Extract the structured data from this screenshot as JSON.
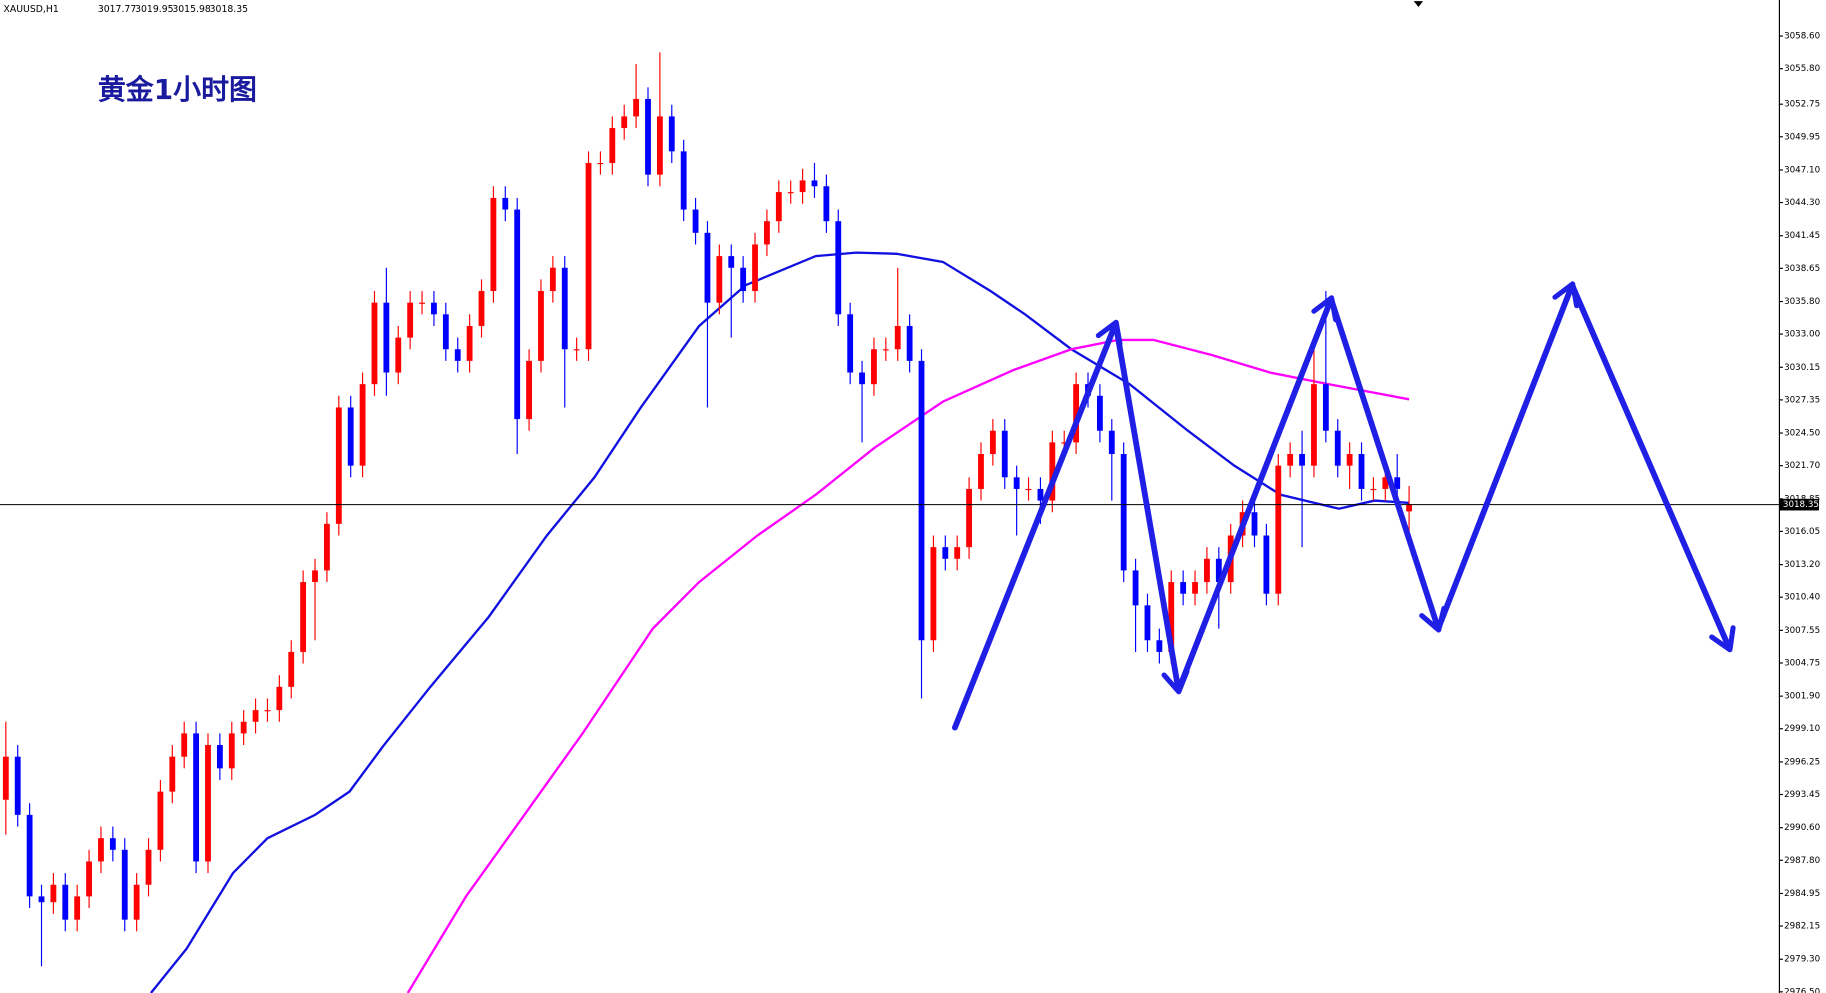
{
  "chart_data": {
    "type": "candlestick",
    "symbol": "XAUUSD,H1",
    "header_ohlc": [
      3017.77,
      3019.95,
      3015.98,
      3018.35
    ],
    "title": "黄金1小时图",
    "up_color": "#ff0000",
    "down_color": "#0000ff",
    "current_price": 3018.35,
    "ylim": [
      2976.4,
      3061.7
    ],
    "yticks": [
      {
        "value": 3058.6,
        "label": "3058.60"
      },
      {
        "value": 3055.8,
        "label": "3055.80"
      },
      {
        "value": 3052.75,
        "label": "3052.75"
      },
      {
        "value": 3049.95,
        "label": "3049.95"
      },
      {
        "value": 3047.1,
        "label": "3047.10"
      },
      {
        "value": 3044.3,
        "label": "3044.30"
      },
      {
        "value": 3041.45,
        "label": "3041.45"
      },
      {
        "value": 3038.65,
        "label": "3038.65"
      },
      {
        "value": 3035.8,
        "label": "3035.80"
      },
      {
        "value": 3033,
        "label": "3033.00"
      },
      {
        "value": 3030.15,
        "label": "3030.15"
      },
      {
        "value": 3027.35,
        "label": "3027.35"
      },
      {
        "value": 3024.5,
        "label": "3024.50"
      },
      {
        "value": 3021.7,
        "label": "3021.70"
      },
      {
        "value": 3018.85,
        "label": "3018.85"
      },
      {
        "value": 3016.05,
        "label": "3016.05"
      },
      {
        "value": 3013.2,
        "label": "3013.20"
      },
      {
        "value": 3010.4,
        "label": "3010.40"
      },
      {
        "value": 3007.55,
        "label": "3007.55"
      },
      {
        "value": 3004.75,
        "label": "3004.75"
      },
      {
        "value": 3001.9,
        "label": "3001.90"
      },
      {
        "value": 2999.1,
        "label": "2999.10"
      },
      {
        "value": 2996.25,
        "label": "2996.25"
      },
      {
        "value": 2993.45,
        "label": "2993.45"
      },
      {
        "value": 2990.6,
        "label": "2990.60"
      },
      {
        "value": 2987.8,
        "label": "2987.80"
      },
      {
        "value": 2984.95,
        "label": "2984.95"
      },
      {
        "value": 2982.15,
        "label": "2982.15"
      },
      {
        "value": 2979.3,
        "label": "2979.30"
      },
      {
        "value": 2976.5,
        "label": "2976.50"
      }
    ],
    "open": [
      2993.0,
      2996.7,
      2991.7,
      2984.7,
      2984.2,
      2985.7,
      2982.7,
      2984.7,
      2987.7,
      2989.7,
      2988.7,
      2982.7,
      2985.7,
      2988.7,
      2993.7,
      2996.7,
      2998.7,
      2987.7,
      2997.7,
      2995.7,
      2998.7,
      2999.7,
      3000.7,
      3000.7,
      3002.7,
      3005.7,
      3011.7,
      3012.7,
      3016.7,
      3026.7,
      3021.7,
      3028.7,
      3035.7,
      3029.7,
      3032.7,
      3035.7,
      3035.7,
      3034.7,
      3031.7,
      3030.7,
      3033.7,
      3036.7,
      3044.7,
      3043.7,
      3025.7,
      3030.7,
      3036.7,
      3038.7,
      3031.7,
      3031.7,
      3047.7,
      3047.7,
      3050.7,
      3051.7,
      3053.2,
      3046.7,
      3051.7,
      3048.7,
      3043.7,
      3041.7,
      3035.7,
      3039.7,
      3038.7,
      3036.7,
      3040.7,
      3042.7,
      3045.2,
      3045.2,
      3046.2,
      3045.7,
      3042.7,
      3034.7,
      3029.7,
      3028.7,
      3031.7,
      3031.7,
      3033.7,
      3030.7,
      3006.7,
      3014.7,
      3013.7,
      3014.7,
      3019.7,
      3022.7,
      3024.7,
      3020.7,
      3019.7,
      3019.7,
      3018.7,
      3023.7,
      3023.7,
      3028.7,
      3027.7,
      3024.7,
      3022.7,
      3012.7,
      3009.7,
      3006.7,
      3005.7,
      3011.7,
      3010.7,
      3011.7,
      3013.7,
      3011.7,
      3015.7,
      3017.7,
      3015.7,
      3010.7,
      3021.7,
      3022.7,
      3021.7,
      3028.7,
      3024.7,
      3021.7,
      3022.7,
      3019.7,
      3019.7,
      3020.7,
      3017.77
    ],
    "high": [
      2999.7,
      2997.7,
      2992.7,
      2985.7,
      2986.7,
      2986.7,
      2985.7,
      2988.7,
      2990.7,
      2990.7,
      2989.7,
      2986.7,
      2989.7,
      2994.7,
      2997.7,
      2999.7,
      2999.7,
      2998.7,
      2998.7,
      2999.7,
      3000.7,
      3001.7,
      3001.7,
      3003.7,
      3006.7,
      3012.7,
      3013.7,
      3017.7,
      3027.7,
      3027.7,
      3029.7,
      3036.7,
      3038.7,
      3033.7,
      3036.7,
      3036.7,
      3036.7,
      3035.7,
      3032.7,
      3034.7,
      3037.7,
      3045.7,
      3045.7,
      3044.7,
      3031.7,
      3037.7,
      3039.7,
      3039.7,
      3032.7,
      3048.7,
      3048.7,
      3051.7,
      3052.7,
      3056.2,
      3054.2,
      3057.2,
      3052.7,
      3049.7,
      3044.7,
      3042.7,
      3040.7,
      3040.7,
      3039.7,
      3041.7,
      3043.7,
      3046.2,
      3046.2,
      3047.2,
      3047.7,
      3046.7,
      3043.7,
      3035.7,
      3030.7,
      3032.7,
      3032.7,
      3038.7,
      3034.7,
      3031.7,
      3015.7,
      3015.7,
      3015.7,
      3020.7,
      3023.7,
      3025.7,
      3025.7,
      3021.7,
      3020.7,
      3020.7,
      3024.7,
      3024.7,
      3029.7,
      3029.7,
      3028.7,
      3025.7,
      3023.7,
      3013.7,
      3010.7,
      3007.7,
      3012.7,
      3012.7,
      3012.7,
      3014.7,
      3014.7,
      3016.7,
      3018.7,
      3018.7,
      3016.7,
      3022.7,
      3023.7,
      3024.7,
      3031.7,
      3036.7,
      3025.7,
      3023.7,
      3023.7,
      3020.7,
      3021.7,
      3022.7,
      3019.95
    ],
    "low": [
      2990.0,
      2990.7,
      2983.7,
      2978.7,
      2983.2,
      2981.7,
      2981.7,
      2983.7,
      2986.7,
      2987.7,
      2981.7,
      2981.7,
      2984.7,
      2987.7,
      2992.7,
      2995.7,
      2986.7,
      2986.7,
      2994.7,
      2994.7,
      2997.7,
      2998.7,
      2999.7,
      2999.7,
      3001.7,
      3004.7,
      3006.7,
      3011.7,
      3015.7,
      3020.7,
      3020.7,
      3027.7,
      3027.7,
      3028.7,
      3031.7,
      3034.7,
      3033.7,
      3030.7,
      3029.7,
      3029.7,
      3032.7,
      3035.7,
      3042.7,
      3022.7,
      3024.7,
      3029.7,
      3035.7,
      3026.7,
      3030.7,
      3030.7,
      3046.7,
      3046.7,
      3049.7,
      3050.7,
      3045.7,
      3045.7,
      3047.7,
      3042.7,
      3040.7,
      3026.7,
      3034.7,
      3032.7,
      3035.7,
      3035.7,
      3039.7,
      3041.7,
      3044.2,
      3044.2,
      3044.7,
      3041.7,
      3033.7,
      3028.7,
      3023.7,
      3027.7,
      3030.7,
      3030.7,
      3029.7,
      3001.7,
      3005.7,
      3012.7,
      3012.7,
      3013.7,
      3018.7,
      3021.7,
      3019.7,
      3015.7,
      3018.7,
      3016.7,
      3017.7,
      3022.7,
      3022.7,
      3026.7,
      3023.7,
      3018.7,
      3011.7,
      3005.7,
      3005.7,
      3004.7,
      3004.7,
      3009.7,
      3009.7,
      3010.7,
      3007.7,
      3010.7,
      3014.7,
      3014.7,
      3009.7,
      3009.7,
      3020.7,
      3014.7,
      3020.7,
      3023.7,
      3020.7,
      3019.7,
      3018.7,
      3018.7,
      3018.7,
      3018.7,
      3015.98
    ],
    "close": [
      2996.7,
      2991.7,
      2984.7,
      2984.2,
      2985.7,
      2982.7,
      2984.7,
      2987.7,
      2989.7,
      2988.7,
      2982.7,
      2985.7,
      2988.7,
      2993.7,
      2996.7,
      2998.7,
      2987.7,
      2997.7,
      2995.7,
      2998.7,
      2999.7,
      3000.7,
      3000.7,
      3002.7,
      3005.7,
      3011.7,
      3012.7,
      3016.7,
      3026.7,
      3021.7,
      3028.7,
      3035.7,
      3029.7,
      3032.7,
      3035.7,
      3035.7,
      3034.7,
      3031.7,
      3030.7,
      3033.7,
      3036.7,
      3044.7,
      3043.7,
      3025.7,
      3030.7,
      3036.7,
      3038.7,
      3031.7,
      3031.7,
      3047.7,
      3047.7,
      3050.7,
      3051.7,
      3053.2,
      3046.7,
      3051.7,
      3048.7,
      3043.7,
      3041.7,
      3035.7,
      3039.7,
      3038.7,
      3036.7,
      3040.7,
      3042.7,
      3045.2,
      3045.2,
      3046.2,
      3045.7,
      3042.7,
      3034.7,
      3029.7,
      3028.7,
      3031.7,
      3031.7,
      3033.7,
      3030.7,
      3006.7,
      3014.7,
      3013.7,
      3014.7,
      3019.7,
      3022.7,
      3024.7,
      3020.7,
      3019.7,
      3019.7,
      3018.7,
      3023.7,
      3023.7,
      3028.7,
      3027.7,
      3024.7,
      3022.7,
      3012.7,
      3009.7,
      3006.7,
      3005.7,
      3011.7,
      3010.7,
      3011.7,
      3013.7,
      3011.7,
      3015.7,
      3017.7,
      3015.7,
      3010.7,
      3021.7,
      3022.7,
      3021.7,
      3028.7,
      3024.7,
      3021.7,
      3022.7,
      3019.7,
      3019.7,
      3020.7,
      3019.7,
      3018.35
    ],
    "moving_averages": [
      {
        "color": "#1010e0",
        "x": [
          12.2,
          15.2,
          19.1,
          22.0,
          26.0,
          28.9,
          31.8,
          35.7,
          40.6,
          45.5,
          49.5,
          53.4,
          58.3,
          62.2,
          68.1,
          71.5,
          74.9,
          78.8,
          82.8,
          85.7,
          89.6,
          94.5,
          99.4,
          103.3,
          107.2,
          112.1,
          115.1,
          118
        ],
        "values": [
          2976.4,
          2980.2,
          2986.7,
          2989.7,
          2991.7,
          2993.7,
          2997.7,
          3002.7,
          3008.7,
          3015.7,
          3020.7,
          3026.7,
          3033.7,
          3037.2,
          3039.7,
          3040.0,
          3039.9,
          3039.2,
          3036.7,
          3034.7,
          3031.7,
          3028.7,
          3024.7,
          3021.7,
          3019.2,
          3018.0,
          3018.7,
          3018.5
        ]
      },
      {
        "color": "#ff00ff",
        "x": [
          33.8,
          38.7,
          43.6,
          48.5,
          54.4,
          58.3,
          63.2,
          68.1,
          73.0,
          78.8,
          84.7,
          89.6,
          93.5,
          96.5,
          101.4,
          106.3,
          111.2,
          118
        ],
        "values": [
          2976.4,
          2984.7,
          2991.7,
          2998.7,
          3007.7,
          3011.7,
          3015.7,
          3019.2,
          3023.2,
          3027.2,
          3029.9,
          3031.7,
          3032.5,
          3032.5,
          3031.2,
          3029.7,
          3028.7,
          3027.4
        ]
      }
    ]
  }
}
